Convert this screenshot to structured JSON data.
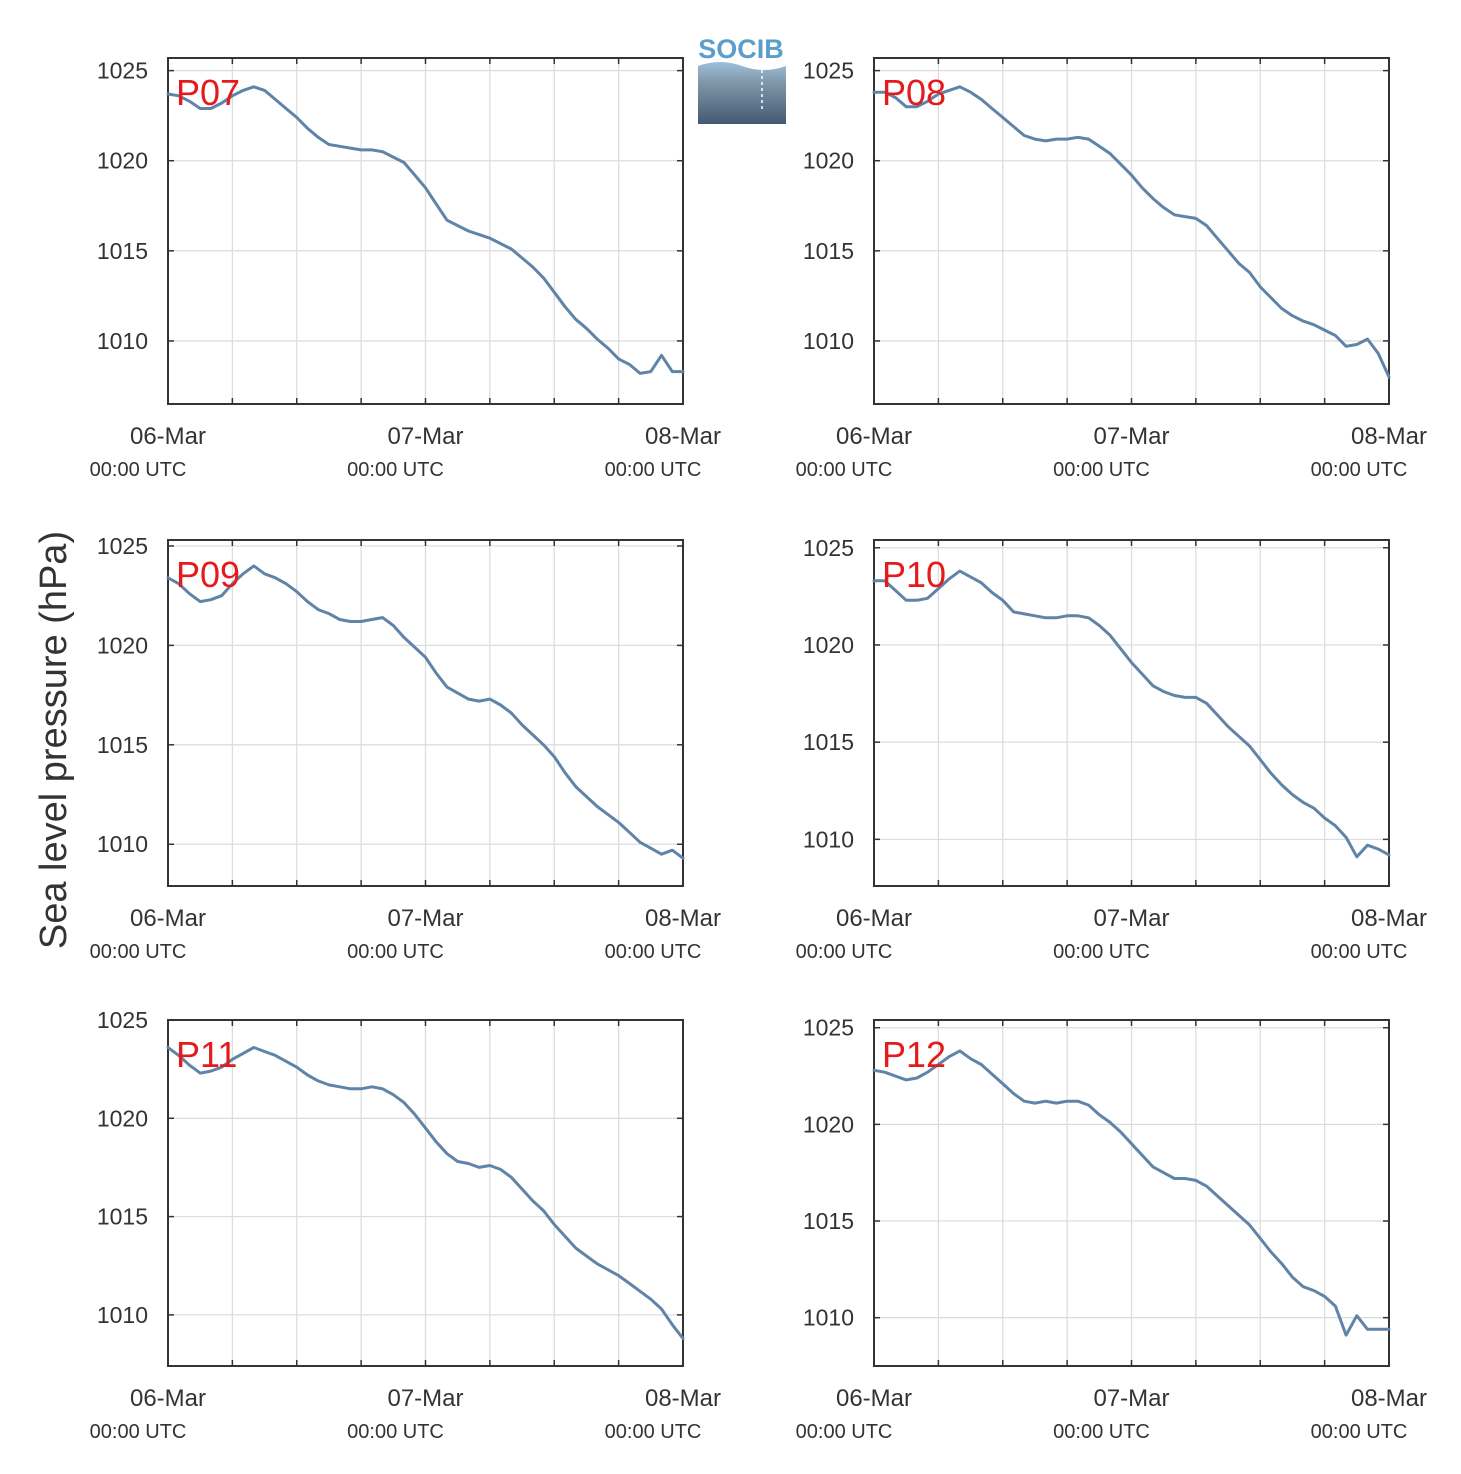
{
  "ylabel": "Sea level pressure (hPa)",
  "logo": {
    "text": "SOCIB"
  },
  "colors": {
    "line": "#5f84a8",
    "station_label": "#e41a1c",
    "grid": "#dddddd",
    "axis": "#333333"
  },
  "chart_data": [
    {
      "type": "line",
      "station": "P07",
      "ylim": [
        1006.5,
        1025.7
      ],
      "yticks": [
        1010,
        1015,
        1020,
        1025
      ],
      "xlim": [
        0,
        48
      ],
      "xticks": [
        0,
        24,
        48
      ],
      "xtick_labels": [
        [
          "06-Mar",
          "00:00 UTC"
        ],
        [
          "07-Mar",
          "00:00 UTC"
        ],
        [
          "08-Mar",
          "00:00 UTC"
        ]
      ],
      "grid": true,
      "series": [
        {
          "x": [
            0,
            1,
            2,
            3,
            4,
            5,
            6,
            7,
            8,
            9,
            10,
            11,
            12,
            13,
            14,
            15,
            16,
            17,
            18,
            19,
            20,
            21,
            22,
            23,
            24,
            25,
            26,
            27,
            28,
            29,
            30,
            31,
            32,
            33,
            34,
            35,
            36,
            37,
            38,
            39,
            40,
            41,
            42,
            43,
            44,
            45,
            46,
            47,
            48
          ],
          "values": [
            1023.7,
            1023.6,
            1023.3,
            1022.9,
            1022.9,
            1023.2,
            1023.6,
            1023.9,
            1024.1,
            1023.9,
            1023.4,
            1022.9,
            1022.4,
            1021.8,
            1021.3,
            1020.9,
            1020.8,
            1020.7,
            1020.6,
            1020.6,
            1020.5,
            1020.2,
            1019.9,
            1019.2,
            1018.5,
            1017.6,
            1016.7,
            1016.4,
            1016.1,
            1015.9,
            1015.7,
            1015.4,
            1015.1,
            1014.6,
            1014.1,
            1013.5,
            1012.7,
            1011.9,
            1011.2,
            1010.7,
            1010.1,
            1009.6,
            1009.0,
            1008.7,
            1008.2,
            1008.3,
            1009.2,
            1008.3,
            1008.3
          ]
        }
      ]
    },
    {
      "type": "line",
      "station": "P08",
      "ylim": [
        1006.5,
        1025.7
      ],
      "yticks": [
        1010,
        1015,
        1020,
        1025
      ],
      "xlim": [
        0,
        48
      ],
      "xticks": [
        0,
        24,
        48
      ],
      "xtick_labels": [
        [
          "06-Mar",
          "00:00 UTC"
        ],
        [
          "07-Mar",
          "00:00 UTC"
        ],
        [
          "08-Mar",
          "00:00 UTC"
        ]
      ],
      "grid": true,
      "series": [
        {
          "x": [
            0,
            1,
            2,
            3,
            4,
            5,
            6,
            7,
            8,
            9,
            10,
            11,
            12,
            13,
            14,
            15,
            16,
            17,
            18,
            19,
            20,
            21,
            22,
            23,
            24,
            25,
            26,
            27,
            28,
            29,
            30,
            31,
            32,
            33,
            34,
            35,
            36,
            37,
            38,
            39,
            40,
            41,
            42,
            43,
            44,
            45,
            46,
            47,
            48
          ],
          "values": [
            1023.8,
            1023.8,
            1023.5,
            1023.0,
            1023.0,
            1023.3,
            1023.7,
            1023.9,
            1024.1,
            1023.8,
            1023.4,
            1022.9,
            1022.4,
            1021.9,
            1021.4,
            1021.2,
            1021.1,
            1021.2,
            1021.2,
            1021.3,
            1021.2,
            1020.8,
            1020.4,
            1019.8,
            1019.2,
            1018.5,
            1017.9,
            1017.4,
            1017.0,
            1016.9,
            1016.8,
            1016.4,
            1015.7,
            1015.0,
            1014.3,
            1013.8,
            1013.0,
            1012.4,
            1011.8,
            1011.4,
            1011.1,
            1010.9,
            1010.6,
            1010.3,
            1009.7,
            1009.8,
            1010.1,
            1009.3,
            1008.0
          ]
        }
      ]
    },
    {
      "type": "line",
      "station": "P09",
      "ylim": [
        1007.9,
        1025.3
      ],
      "yticks": [
        1010,
        1015,
        1020,
        1025
      ],
      "xlim": [
        0,
        48
      ],
      "xticks": [
        0,
        24,
        48
      ],
      "xtick_labels": [
        [
          "06-Mar",
          "00:00 UTC"
        ],
        [
          "07-Mar",
          "00:00 UTC"
        ],
        [
          "08-Mar",
          "00:00 UTC"
        ]
      ],
      "grid": true,
      "series": [
        {
          "x": [
            0,
            1,
            2,
            3,
            4,
            5,
            6,
            7,
            8,
            9,
            10,
            11,
            12,
            13,
            14,
            15,
            16,
            17,
            18,
            19,
            20,
            21,
            22,
            23,
            24,
            25,
            26,
            27,
            28,
            29,
            30,
            31,
            32,
            33,
            34,
            35,
            36,
            37,
            38,
            39,
            40,
            41,
            42,
            43,
            44,
            45,
            46,
            47,
            48
          ],
          "values": [
            1023.4,
            1023.1,
            1022.6,
            1022.2,
            1022.3,
            1022.5,
            1023.1,
            1023.6,
            1024.0,
            1023.6,
            1023.4,
            1023.1,
            1022.7,
            1022.2,
            1021.8,
            1021.6,
            1021.3,
            1021.2,
            1021.2,
            1021.3,
            1021.4,
            1021.0,
            1020.4,
            1019.9,
            1019.4,
            1018.6,
            1017.9,
            1017.6,
            1017.3,
            1017.2,
            1017.3,
            1017.0,
            1016.6,
            1016.0,
            1015.5,
            1015.0,
            1014.4,
            1013.6,
            1012.9,
            1012.4,
            1011.9,
            1011.5,
            1011.1,
            1010.6,
            1010.1,
            1009.8,
            1009.5,
            1009.7,
            1009.3
          ]
        }
      ]
    },
    {
      "type": "line",
      "station": "P10",
      "ylim": [
        1007.6,
        1025.4
      ],
      "yticks": [
        1010,
        1015,
        1020,
        1025
      ],
      "xlim": [
        0,
        48
      ],
      "xticks": [
        0,
        24,
        48
      ],
      "xtick_labels": [
        [
          "06-Mar",
          "00:00 UTC"
        ],
        [
          "07-Mar",
          "00:00 UTC"
        ],
        [
          "08-Mar",
          "00:00 UTC"
        ]
      ],
      "grid": true,
      "series": [
        {
          "x": [
            0,
            1,
            2,
            3,
            4,
            5,
            6,
            7,
            8,
            9,
            10,
            11,
            12,
            13,
            14,
            15,
            16,
            17,
            18,
            19,
            20,
            21,
            22,
            23,
            24,
            25,
            26,
            27,
            28,
            29,
            30,
            31,
            32,
            33,
            34,
            35,
            36,
            37,
            38,
            39,
            40,
            41,
            42,
            43,
            44,
            45,
            46,
            47,
            48
          ],
          "values": [
            1023.3,
            1023.3,
            1022.8,
            1022.3,
            1022.3,
            1022.4,
            1022.9,
            1023.4,
            1023.8,
            1023.5,
            1023.2,
            1022.7,
            1022.3,
            1021.7,
            1021.6,
            1021.5,
            1021.4,
            1021.4,
            1021.5,
            1021.5,
            1021.4,
            1021.0,
            1020.5,
            1019.8,
            1019.1,
            1018.5,
            1017.9,
            1017.6,
            1017.4,
            1017.3,
            1017.3,
            1017.0,
            1016.4,
            1015.8,
            1015.3,
            1014.8,
            1014.1,
            1013.4,
            1012.8,
            1012.3,
            1011.9,
            1011.6,
            1011.1,
            1010.7,
            1010.1,
            1009.1,
            1009.7,
            1009.5,
            1009.2
          ]
        }
      ]
    },
    {
      "type": "line",
      "station": "P11",
      "ylim": [
        1007.4,
        1025.0
      ],
      "yticks": [
        1010,
        1015,
        1020,
        1025
      ],
      "xlim": [
        0,
        48
      ],
      "xticks": [
        0,
        24,
        48
      ],
      "xtick_labels": [
        [
          "06-Mar",
          "00:00 UTC"
        ],
        [
          "07-Mar",
          "00:00 UTC"
        ],
        [
          "08-Mar",
          "00:00 UTC"
        ]
      ],
      "grid": true,
      "series": [
        {
          "x": [
            0,
            1,
            2,
            3,
            4,
            5,
            6,
            7,
            8,
            9,
            10,
            11,
            12,
            13,
            14,
            15,
            16,
            17,
            18,
            19,
            20,
            21,
            22,
            23,
            24,
            25,
            26,
            27,
            28,
            29,
            30,
            31,
            32,
            33,
            34,
            35,
            36,
            37,
            38,
            39,
            40,
            41,
            42,
            43,
            44,
            45,
            46,
            47,
            48
          ],
          "values": [
            1023.6,
            1023.2,
            1022.7,
            1022.3,
            1022.4,
            1022.6,
            1023.0,
            1023.3,
            1023.6,
            1023.4,
            1023.2,
            1022.9,
            1022.6,
            1022.2,
            1021.9,
            1021.7,
            1021.6,
            1021.5,
            1021.5,
            1021.6,
            1021.5,
            1021.2,
            1020.8,
            1020.2,
            1019.5,
            1018.8,
            1018.2,
            1017.8,
            1017.7,
            1017.5,
            1017.6,
            1017.4,
            1017.0,
            1016.4,
            1015.8,
            1015.3,
            1014.6,
            1014.0,
            1013.4,
            1013.0,
            1012.6,
            1012.3,
            1012.0,
            1011.6,
            1011.2,
            1010.8,
            1010.3,
            1009.5,
            1008.8
          ]
        }
      ]
    },
    {
      "type": "line",
      "station": "P12",
      "ylim": [
        1007.5,
        1025.4
      ],
      "yticks": [
        1010,
        1015,
        1020,
        1025
      ],
      "xlim": [
        0,
        48
      ],
      "xticks": [
        0,
        24,
        48
      ],
      "xtick_labels": [
        [
          "06-Mar",
          "00:00 UTC"
        ],
        [
          "07-Mar",
          "00:00 UTC"
        ],
        [
          "08-Mar",
          "00:00 UTC"
        ]
      ],
      "grid": true,
      "series": [
        {
          "x": [
            0,
            1,
            2,
            3,
            4,
            5,
            6,
            7,
            8,
            9,
            10,
            11,
            12,
            13,
            14,
            15,
            16,
            17,
            18,
            19,
            20,
            21,
            22,
            23,
            24,
            25,
            26,
            27,
            28,
            29,
            30,
            31,
            32,
            33,
            34,
            35,
            36,
            37,
            38,
            39,
            40,
            41,
            42,
            43,
            44,
            45,
            46,
            47,
            48
          ],
          "values": [
            1022.8,
            1022.7,
            1022.5,
            1022.3,
            1022.4,
            1022.7,
            1023.1,
            1023.5,
            1023.8,
            1023.4,
            1023.1,
            1022.6,
            1022.1,
            1021.6,
            1021.2,
            1021.1,
            1021.2,
            1021.1,
            1021.2,
            1021.2,
            1021.0,
            1020.5,
            1020.1,
            1019.6,
            1019.0,
            1018.4,
            1017.8,
            1017.5,
            1017.2,
            1017.2,
            1017.1,
            1016.8,
            1016.3,
            1015.8,
            1015.3,
            1014.8,
            1014.1,
            1013.4,
            1012.8,
            1012.1,
            1011.6,
            1011.4,
            1011.1,
            1010.6,
            1009.1,
            1010.1,
            1009.4,
            1009.4,
            1009.4
          ]
        }
      ]
    }
  ]
}
